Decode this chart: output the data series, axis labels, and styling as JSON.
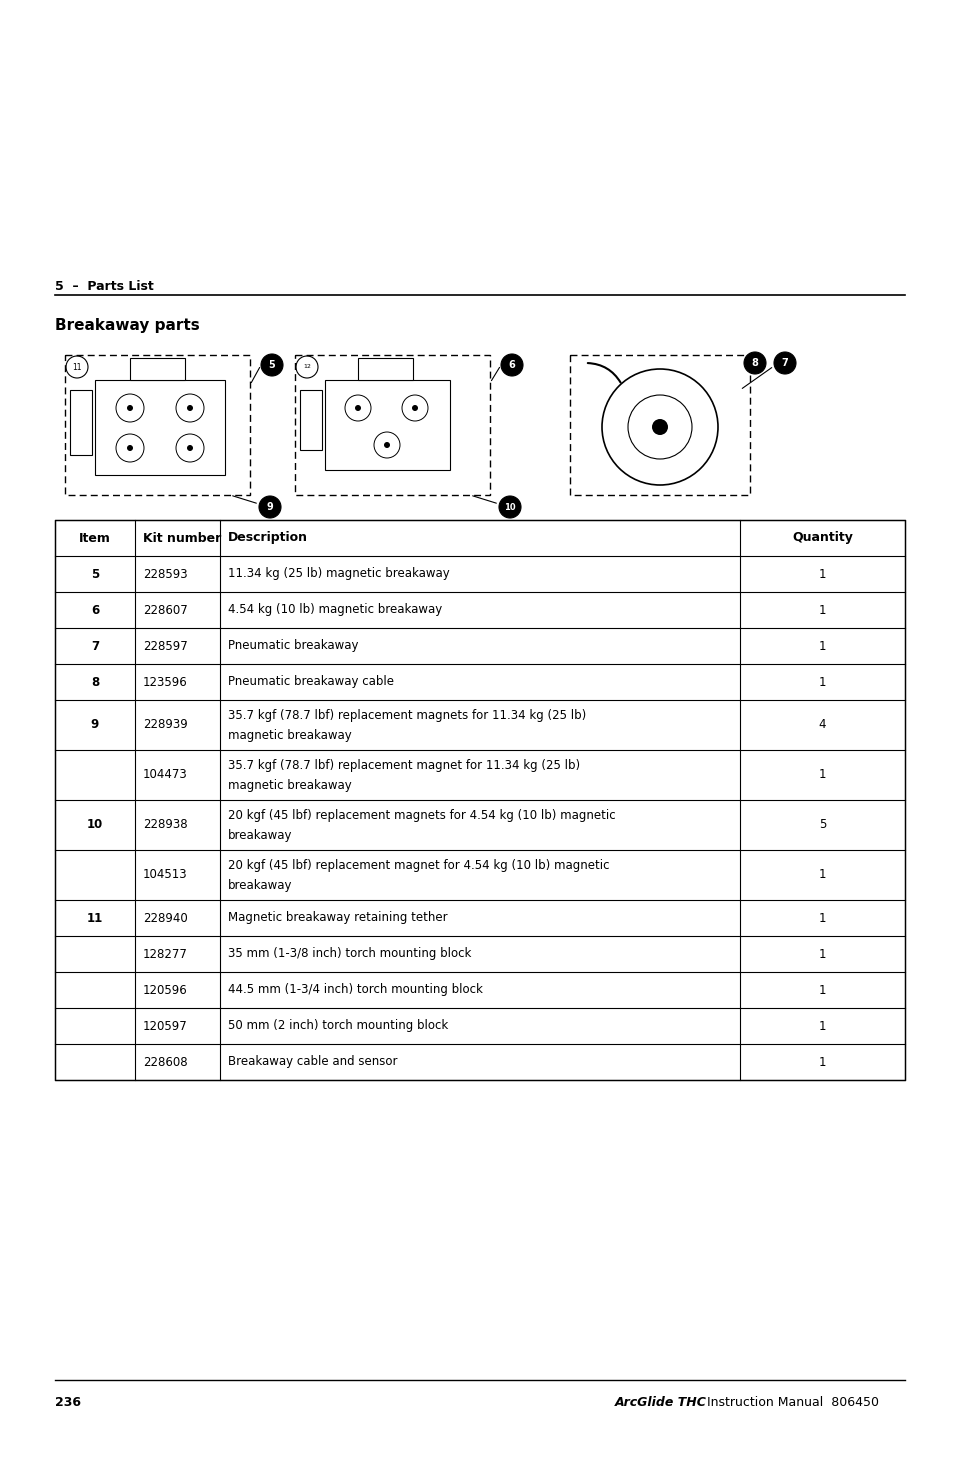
{
  "section_label": "5  –  Parts List",
  "section_title": "Breakaway parts",
  "page_number": "236",
  "footer_italic": "ArcGlide THC",
  "footer_normal": " Instruction Manual  806450",
  "table_headers": [
    "Item",
    "Kit number",
    "Description",
    "Quantity"
  ],
  "table_rows": [
    [
      "5",
      "228593",
      "11.34 kg (25 lb) magnetic breakaway",
      "1"
    ],
    [
      "6",
      "228607",
      "4.54 kg (10 lb) magnetic breakaway",
      "1"
    ],
    [
      "7",
      "228597",
      "Pneumatic breakaway",
      "1"
    ],
    [
      "8",
      "123596",
      "Pneumatic breakaway cable",
      "1"
    ],
    [
      "9",
      "228939",
      "35.7 kgf (78.7 lbf) replacement magnets for 11.34 kg (25 lb)\nmagnetic breakaway",
      "4"
    ],
    [
      "",
      "104473",
      "35.7 kgf (78.7 lbf) replacement magnet for 11.34 kg (25 lb)\nmagnetic breakaway",
      "1"
    ],
    [
      "10",
      "228938",
      "20 kgf (45 lbf) replacement magnets for 4.54 kg (10 lb) magnetic\nbreakaway",
      "5"
    ],
    [
      "",
      "104513",
      "20 kgf (45 lbf) replacement magnet for 4.54 kg (10 lb) magnetic\nbreakaway",
      "1"
    ],
    [
      "11",
      "228940",
      "Magnetic breakaway retaining tether",
      "1"
    ],
    [
      "",
      "128277",
      "35 mm (1-3/8 inch) torch mounting block",
      "1"
    ],
    [
      "",
      "120596",
      "44.5 mm (1-3/4 inch) torch mounting block",
      "1"
    ],
    [
      "",
      "120597",
      "50 mm (2 inch) torch mounting block",
      "1"
    ],
    [
      "",
      "228608",
      "Breakaway cable and sensor",
      "1"
    ]
  ],
  "background_color": "#ffffff"
}
